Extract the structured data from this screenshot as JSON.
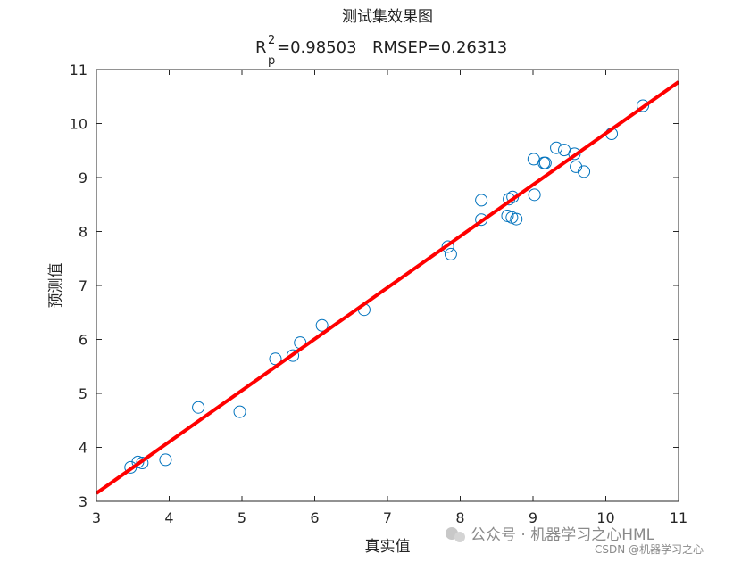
{
  "chart_data": {
    "type": "scatter",
    "title": "测试集效果图",
    "subtitle": {
      "r_label": "R",
      "r_sup": "2",
      "r_sub": "p",
      "r_value": "=0.98503",
      "rmsep": "RMSEP=0.26313"
    },
    "xlabel": "真实值",
    "ylabel": "预测值",
    "xlim": [
      3,
      11
    ],
    "ylim": [
      3,
      11
    ],
    "x_ticks": [
      "3",
      "4",
      "5",
      "6",
      "7",
      "8",
      "9",
      "10",
      "11"
    ],
    "y_ticks": [
      "3",
      "4",
      "5",
      "6",
      "7",
      "8",
      "9",
      "10",
      "11"
    ],
    "grid": false,
    "marker_color": "#0072BD",
    "line_color": "#FF0000",
    "fit_line": {
      "x": [
        3,
        11
      ],
      "y": [
        3.15,
        10.77
      ]
    },
    "points": [
      {
        "x": 3.47,
        "y": 3.63
      },
      {
        "x": 3.57,
        "y": 3.73
      },
      {
        "x": 3.63,
        "y": 3.71
      },
      {
        "x": 3.95,
        "y": 3.77
      },
      {
        "x": 4.4,
        "y": 4.74
      },
      {
        "x": 4.97,
        "y": 4.66
      },
      {
        "x": 5.46,
        "y": 5.64
      },
      {
        "x": 5.7,
        "y": 5.7
      },
      {
        "x": 5.8,
        "y": 5.94
      },
      {
        "x": 6.1,
        "y": 6.26
      },
      {
        "x": 6.68,
        "y": 6.55
      },
      {
        "x": 7.83,
        "y": 7.72
      },
      {
        "x": 7.87,
        "y": 7.58
      },
      {
        "x": 8.29,
        "y": 8.58
      },
      {
        "x": 8.29,
        "y": 8.22
      },
      {
        "x": 8.65,
        "y": 8.29
      },
      {
        "x": 8.67,
        "y": 8.6
      },
      {
        "x": 8.72,
        "y": 8.64
      },
      {
        "x": 8.71,
        "y": 8.26
      },
      {
        "x": 8.77,
        "y": 8.23
      },
      {
        "x": 9.01,
        "y": 9.34
      },
      {
        "x": 9.02,
        "y": 8.68
      },
      {
        "x": 9.15,
        "y": 9.27
      },
      {
        "x": 9.17,
        "y": 9.27
      },
      {
        "x": 9.32,
        "y": 9.55
      },
      {
        "x": 9.43,
        "y": 9.51
      },
      {
        "x": 9.57,
        "y": 9.44
      },
      {
        "x": 9.59,
        "y": 9.2
      },
      {
        "x": 9.7,
        "y": 9.11
      },
      {
        "x": 10.08,
        "y": 9.81
      },
      {
        "x": 10.51,
        "y": 10.33
      }
    ]
  },
  "watermark": {
    "wechat": "公众号 · 机器学习之心HML",
    "csdn": "CSDN @机器学习之心"
  }
}
